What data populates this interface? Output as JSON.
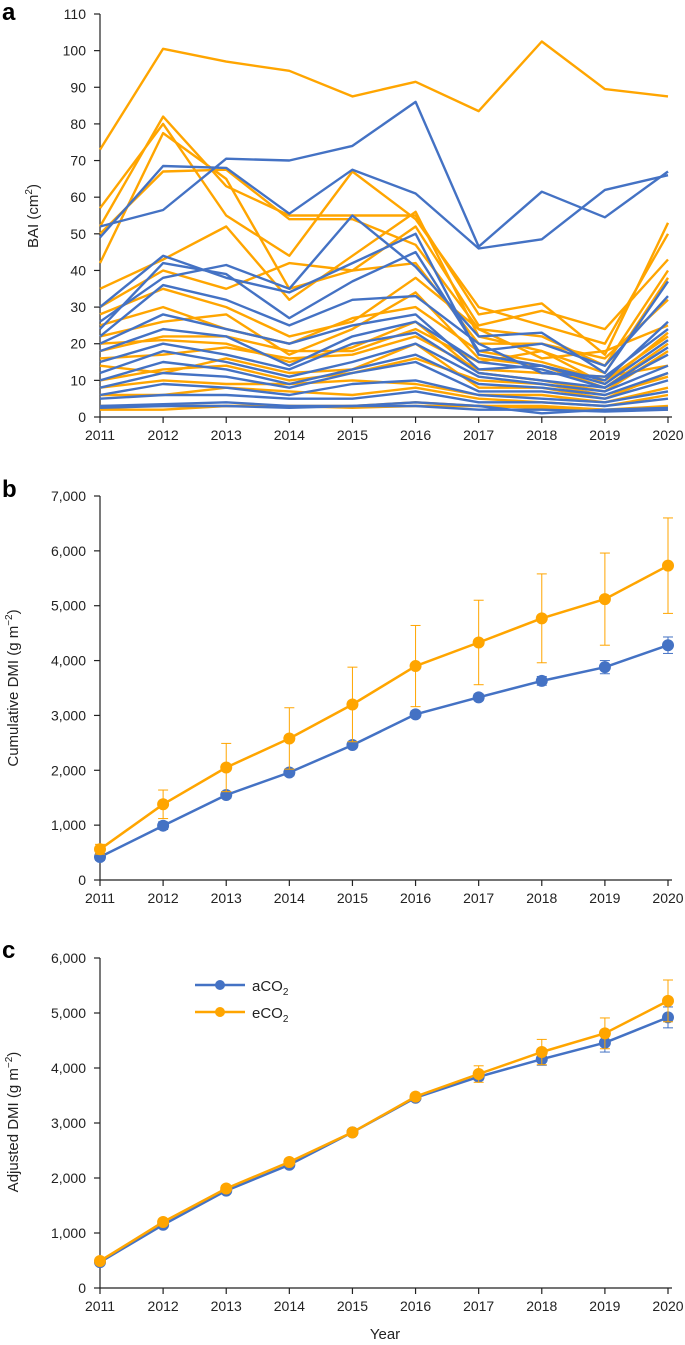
{
  "colors": {
    "aCO2": "#4472C4",
    "eCO2": "#FFA500",
    "axis": "#222222"
  },
  "chart_data": [
    {
      "panel": "a",
      "type": "line",
      "ylabel_main": "BAI (cm",
      "ylabel_sup": "2",
      "ylabel_close": ")",
      "x": [
        "2011",
        "2012",
        "2013",
        "2014",
        "2015",
        "2016",
        "2017",
        "2018",
        "2019",
        "2020"
      ],
      "ylim": [
        0,
        110
      ],
      "yticks": [
        "0",
        "10",
        "20",
        "30",
        "40",
        "50",
        "60",
        "70",
        "80",
        "90",
        "100",
        "110"
      ],
      "series": [
        {
          "group": "eCO2",
          "values": [
            73,
            100.5,
            97,
            94.5,
            87.5,
            91.5,
            83.5,
            102.5,
            89.5,
            87.5
          ]
        },
        {
          "group": "eCO2",
          "values": [
            52,
            82,
            63,
            55,
            55,
            55,
            28,
            31,
            17,
            53
          ]
        },
        {
          "group": "eCO2",
          "values": [
            57,
            80,
            55,
            44,
            67,
            54,
            30,
            25,
            20,
            50
          ]
        },
        {
          "group": "eCO2",
          "values": [
            42,
            77.5,
            65,
            35,
            40,
            52,
            25,
            29,
            24,
            43
          ]
        },
        {
          "group": "eCO2",
          "values": [
            50,
            67,
            67.5,
            54,
            54,
            47,
            24,
            22,
            14,
            40
          ]
        },
        {
          "group": "eCO2",
          "values": [
            35,
            43,
            52,
            32,
            44,
            56,
            22,
            18,
            12,
            38
          ]
        },
        {
          "group": "eCO2",
          "values": [
            30,
            40,
            35,
            42,
            40,
            42,
            20,
            20,
            16,
            32
          ]
        },
        {
          "group": "eCO2",
          "values": [
            28,
            35,
            30,
            22,
            26,
            38,
            24,
            16,
            18,
            25
          ]
        },
        {
          "group": "eCO2",
          "values": [
            25,
            30,
            24,
            20,
            27,
            30,
            18,
            15,
            10,
            22
          ]
        },
        {
          "group": "eCO2",
          "values": [
            22,
            26,
            28,
            17,
            24,
            34,
            16,
            14,
            8,
            20
          ]
        },
        {
          "group": "eCO2",
          "values": [
            20,
            21,
            20,
            15,
            19,
            26,
            12,
            10,
            7,
            18
          ]
        },
        {
          "group": "eCO2",
          "values": [
            18,
            22,
            22,
            18,
            18,
            24,
            15,
            18,
            9,
            23
          ]
        },
        {
          "group": "eCO2",
          "values": [
            16,
            17,
            19,
            16,
            17,
            22,
            13,
            12,
            11,
            14
          ]
        },
        {
          "group": "eCO2",
          "values": [
            14,
            12,
            16,
            12,
            13,
            20,
            8,
            8,
            5,
            12
          ]
        },
        {
          "group": "eCO2",
          "values": [
            10,
            13,
            14,
            10,
            12,
            16,
            10,
            9,
            6,
            11
          ]
        },
        {
          "group": "eCO2",
          "values": [
            8,
            10,
            9,
            9,
            10,
            9,
            6,
            6,
            4,
            8
          ]
        },
        {
          "group": "eCO2",
          "values": [
            6,
            6,
            8,
            7,
            6,
            8,
            5,
            4,
            3,
            6
          ]
        },
        {
          "group": "eCO2",
          "values": [
            3,
            3,
            3,
            3,
            3,
            4,
            3,
            3,
            2,
            3
          ]
        },
        {
          "group": "eCO2",
          "values": [
            2,
            2,
            3,
            3,
            2.5,
            3,
            3,
            2.5,
            2,
            2
          ]
        },
        {
          "group": "aCO2",
          "values": [
            49,
            68.5,
            68,
            55.5,
            67.5,
            61,
            46,
            48.5,
            62,
            66
          ]
        },
        {
          "group": "aCO2",
          "values": [
            52,
            56.5,
            70.5,
            70,
            74,
            86,
            46.5,
            61.5,
            54.5,
            67
          ]
        },
        {
          "group": "aCO2",
          "values": [
            26,
            38,
            41.5,
            35,
            55,
            41,
            22,
            23,
            12,
            37
          ]
        },
        {
          "group": "aCO2",
          "values": [
            24,
            42,
            39,
            27,
            37,
            45,
            18,
            20,
            14,
            33
          ]
        },
        {
          "group": "aCO2",
          "values": [
            30,
            44,
            38,
            34,
            42,
            50,
            17,
            14,
            10,
            26
          ]
        },
        {
          "group": "aCO2",
          "values": [
            22,
            36,
            32,
            25,
            32,
            33,
            20,
            12,
            11,
            24
          ]
        },
        {
          "group": "aCO2",
          "values": [
            20,
            28,
            24,
            20,
            25,
            28,
            13,
            14,
            9,
            21
          ]
        },
        {
          "group": "aCO2",
          "values": [
            18,
            24,
            22,
            14,
            22,
            26,
            15,
            13,
            8,
            19
          ]
        },
        {
          "group": "aCO2",
          "values": [
            15,
            20,
            17,
            13,
            20,
            23,
            12,
            10,
            8,
            17
          ]
        },
        {
          "group": "aCO2",
          "values": [
            12,
            18,
            15,
            11,
            15,
            20,
            11,
            9,
            7,
            14
          ]
        },
        {
          "group": "aCO2",
          "values": [
            10,
            15,
            13,
            9,
            13,
            17,
            9,
            8,
            6,
            12
          ]
        },
        {
          "group": "aCO2",
          "values": [
            8,
            12,
            11,
            8,
            12,
            15,
            7,
            7,
            5,
            10
          ]
        },
        {
          "group": "aCO2",
          "values": [
            6,
            9,
            8,
            6,
            9,
            10,
            6,
            5,
            4,
            7
          ]
        },
        {
          "group": "aCO2",
          "values": [
            5,
            6,
            6,
            5,
            5,
            7,
            4,
            4,
            3,
            5
          ]
        },
        {
          "group": "aCO2",
          "values": [
            3,
            3.5,
            4,
            3,
            3,
            4,
            3,
            1,
            2,
            2.5
          ]
        },
        {
          "group": "aCO2",
          "values": [
            2.5,
            3,
            3,
            2.5,
            3,
            3,
            2,
            2,
            1.5,
            2
          ]
        }
      ]
    },
    {
      "panel": "b",
      "type": "line",
      "ylabel_main": "Cumulative DMI (g m",
      "ylabel_sup": "−2",
      "ylabel_close": ")",
      "x": [
        "2011",
        "2012",
        "2013",
        "2014",
        "2015",
        "2016",
        "2017",
        "2018",
        "2019",
        "2020"
      ],
      "ylim": [
        0,
        7000
      ],
      "yticks": [
        "0",
        "1,000",
        "2,000",
        "3,000",
        "4,000",
        "5,000",
        "6,000",
        "7,000"
      ],
      "series": [
        {
          "name": "aCO2",
          "values": [
            420,
            990,
            1550,
            1960,
            2460,
            3020,
            3330,
            3630,
            3880,
            4280
          ],
          "err": [
            60,
            70,
            60,
            60,
            50,
            60,
            60,
            80,
            120,
            150
          ]
        },
        {
          "name": "eCO2",
          "values": [
            560,
            1380,
            2050,
            2580,
            3200,
            3900,
            4330,
            4770,
            5120,
            5730
          ],
          "err": [
            90,
            260,
            440,
            560,
            680,
            740,
            770,
            810,
            840,
            870
          ]
        }
      ]
    },
    {
      "panel": "c",
      "type": "line",
      "ylabel_main": "Adjusted DMI (g m",
      "ylabel_sup": "−2",
      "ylabel_close": ")",
      "xlabel": "Year",
      "x": [
        "2011",
        "2012",
        "2013",
        "2014",
        "2015",
        "2016",
        "2017",
        "2018",
        "2019",
        "2020"
      ],
      "ylim": [
        0,
        6000
      ],
      "yticks": [
        "0",
        "1,000",
        "2,000",
        "3,000",
        "4,000",
        "5,000",
        "6,000"
      ],
      "legend": [
        {
          "main": "aCO",
          "sub": "2",
          "key": "aCO2"
        },
        {
          "main": "eCO",
          "sub": "2",
          "key": "eCO2"
        }
      ],
      "series": [
        {
          "name": "aCO2",
          "values": [
            470,
            1150,
            1770,
            2240,
            2830,
            3460,
            3840,
            4160,
            4460,
            4920
          ],
          "err": [
            40,
            50,
            50,
            50,
            50,
            50,
            60,
            110,
            170,
            190
          ]
        },
        {
          "name": "eCO2",
          "values": [
            490,
            1200,
            1810,
            2290,
            2830,
            3480,
            3890,
            4290,
            4630,
            5220
          ],
          "err": [
            40,
            50,
            50,
            50,
            50,
            50,
            150,
            230,
            280,
            380
          ]
        }
      ]
    }
  ]
}
